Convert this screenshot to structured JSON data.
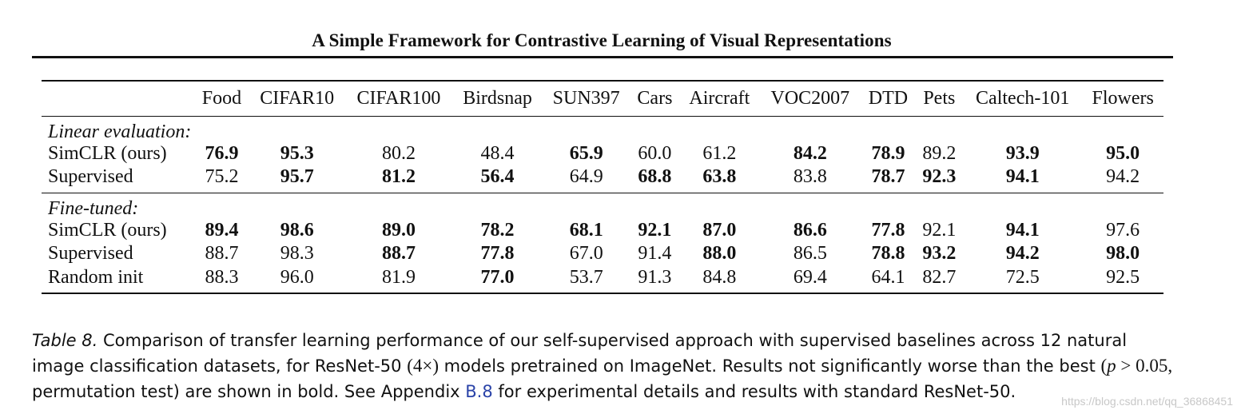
{
  "paper_title": "A Simple Framework for Contrastive Learning of Visual Representations",
  "table": {
    "columns": [
      "Food",
      "CIFAR10",
      "CIFAR100",
      "Birdsnap",
      "SUN397",
      "Cars",
      "Aircraft",
      "VOC2007",
      "DTD",
      "Pets",
      "Caltech-101",
      "Flowers"
    ],
    "groups": [
      {
        "name": "Linear evaluation:",
        "rows": [
          {
            "label": "SimCLR (ours)",
            "values": [
              "76.9",
              "95.3",
              "80.2",
              "48.4",
              "65.9",
              "60.0",
              "61.2",
              "84.2",
              "78.9",
              "89.2",
              "93.9",
              "95.0"
            ],
            "bold": [
              true,
              true,
              false,
              false,
              true,
              false,
              false,
              true,
              true,
              false,
              true,
              true
            ]
          },
          {
            "label": "Supervised",
            "values": [
              "75.2",
              "95.7",
              "81.2",
              "56.4",
              "64.9",
              "68.8",
              "63.8",
              "83.8",
              "78.7",
              "92.3",
              "94.1",
              "94.2"
            ],
            "bold": [
              false,
              true,
              true,
              true,
              false,
              true,
              true,
              false,
              true,
              true,
              true,
              false
            ]
          }
        ]
      },
      {
        "name": "Fine-tuned:",
        "rows": [
          {
            "label": "SimCLR (ours)",
            "values": [
              "89.4",
              "98.6",
              "89.0",
              "78.2",
              "68.1",
              "92.1",
              "87.0",
              "86.6",
              "77.8",
              "92.1",
              "94.1",
              "97.6"
            ],
            "bold": [
              true,
              true,
              true,
              true,
              true,
              true,
              true,
              true,
              true,
              false,
              true,
              false
            ]
          },
          {
            "label": "Supervised",
            "values": [
              "88.7",
              "98.3",
              "88.7",
              "77.8",
              "67.0",
              "91.4",
              "88.0",
              "86.5",
              "78.8",
              "93.2",
              "94.2",
              "98.0"
            ],
            "bold": [
              false,
              false,
              true,
              true,
              false,
              false,
              true,
              false,
              true,
              true,
              true,
              true
            ]
          },
          {
            "label": "Random init",
            "values": [
              "88.3",
              "96.0",
              "81.9",
              "77.0",
              "53.7",
              "91.3",
              "84.8",
              "69.4",
              "64.1",
              "82.7",
              "72.5",
              "92.5"
            ],
            "bold": [
              false,
              false,
              false,
              true,
              false,
              false,
              false,
              false,
              false,
              false,
              false,
              false
            ]
          }
        ]
      }
    ]
  },
  "caption": {
    "label": "Table 8.",
    "part1": " Comparison of transfer learning performance of our self-supervised approach with supervised baselines across 12 natural image classification datasets, for ResNet-50 ",
    "math1": "(4×)",
    "part2": " models pretrained on ImageNet. Results not significantly worse than the best ",
    "math2_open": "(",
    "math2_var": "p",
    "math2_rest": " > 0.05,",
    "part3": " permutation test) are shown in bold. See Appendix ",
    "link": "B.8",
    "part4": " for experimental details and results with standard ResNet-50."
  },
  "watermark": "https://blog.csdn.net/qq_36868451"
}
